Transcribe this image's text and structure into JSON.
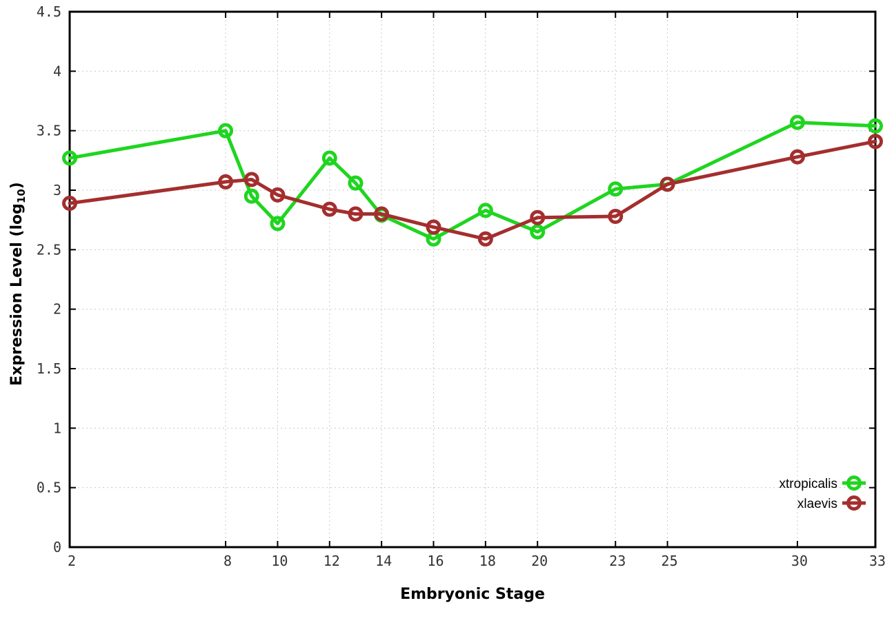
{
  "chart_data": {
    "type": "line",
    "title": "",
    "xlabel": "Embryonic Stage",
    "ylabel": {
      "text": "Expression Level (log10)",
      "main": "Expression Level (log",
      "sub": "10",
      "end": ")"
    },
    "xlim": [
      2,
      33
    ],
    "ylim": [
      0,
      4.5
    ],
    "x_tick_labels": [
      2,
      8,
      10,
      12,
      14,
      16,
      18,
      20,
      23,
      25,
      30,
      33
    ],
    "y_tick_labels": [
      0,
      0.5,
      1,
      1.5,
      2,
      2.5,
      3,
      3.5,
      4,
      4.5
    ],
    "grid": true,
    "legend_position": "bottom-right",
    "x": [
      2,
      8,
      9,
      10,
      12,
      13,
      14,
      16,
      18,
      20,
      23,
      25,
      30,
      33
    ],
    "series": [
      {
        "name": "xtropicalis",
        "color": "#1fd51f",
        "values": [
          3.27,
          3.5,
          2.95,
          2.72,
          3.27,
          3.06,
          2.79,
          2.59,
          2.83,
          2.65,
          3.01,
          3.05,
          3.57,
          3.54
        ]
      },
      {
        "name": "xlaevis",
        "color": "#a42e2e",
        "values": [
          2.89,
          3.07,
          3.09,
          2.96,
          2.84,
          2.8,
          2.8,
          2.69,
          2.59,
          2.77,
          2.78,
          3.05,
          3.28,
          3.41
        ]
      }
    ],
    "colors": {
      "grid": "#c8c8c8",
      "axis": "#000000",
      "tick_text": "#333333"
    }
  }
}
